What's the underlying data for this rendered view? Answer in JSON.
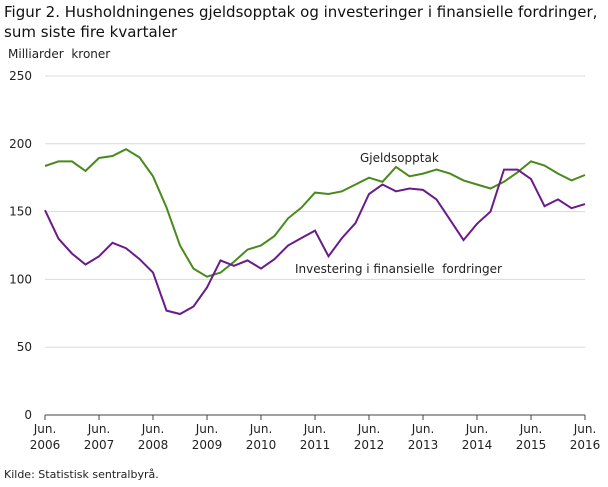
{
  "chart_data": {
    "type": "line",
    "title": "Figur 2. Husholdningenes gjeldsopptak og investeringer i finansielle fordringer, sum siste fire kvartaler",
    "y_label": "Milliarder  kroner",
    "source": "Kilde: Statistisk sentralbyrå.",
    "categories": [
      "Jun. 2006",
      null,
      null,
      null,
      "Jun. 2007",
      null,
      null,
      null,
      "Jun. 2008",
      null,
      null,
      null,
      "Jun. 2009",
      null,
      null,
      null,
      "Jun. 2010",
      null,
      null,
      null,
      "Jun. 2011",
      null,
      null,
      null,
      "Jun. 2012",
      null,
      null,
      null,
      "Jun. 2013",
      null,
      null,
      null,
      "Jun. 2014",
      null,
      null,
      null,
      "Jun. 2015",
      null,
      null,
      null,
      "Jun. 2016"
    ],
    "series": [
      {
        "name": "Gjeldsopptak",
        "color": "#4a8a1c",
        "values": [
          183.6,
          187,
          187,
          180,
          189.5,
          191,
          196,
          190,
          176,
          153,
          125,
          108,
          102,
          105,
          113,
          122,
          125,
          132,
          145,
          153,
          164,
          163,
          165,
          170,
          175,
          172,
          183,
          176,
          178,
          181,
          178,
          173,
          170,
          167,
          172,
          179,
          187,
          184,
          178,
          173,
          177
        ]
      },
      {
        "name": "Investering i finansielle  fordringer",
        "color": "#6a1b8a",
        "values": [
          151,
          130,
          119,
          111,
          117,
          127,
          123,
          115,
          105,
          77,
          74.5,
          80,
          94,
          114,
          110,
          114,
          108,
          115,
          125,
          130.5,
          136,
          117,
          130.5,
          141.5,
          163,
          170,
          165,
          167,
          166,
          159,
          144,
          129,
          141,
          150,
          181,
          181,
          174,
          154,
          159,
          152.5,
          155.5
        ]
      }
    ],
    "ylim": [
      0,
      250
    ],
    "yticks": [
      0,
      50,
      100,
      150,
      200,
      250
    ],
    "grid": true
  }
}
